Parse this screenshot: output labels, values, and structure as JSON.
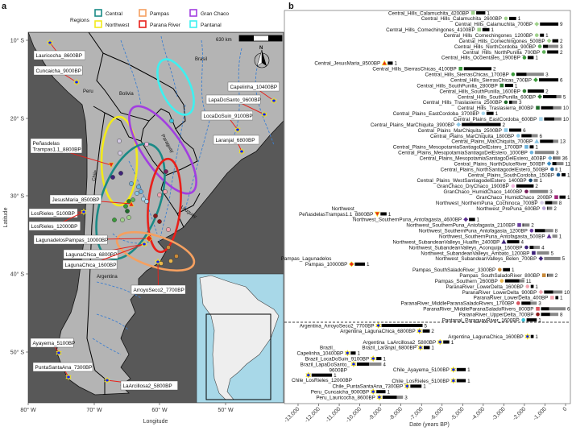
{
  "panels": {
    "a": "a",
    "b": "b"
  },
  "map": {
    "legend_title": "Regions",
    "regions": [
      {
        "name": "Central",
        "color": "#1a8a86"
      },
      {
        "name": "Northwest",
        "color": "#f2ea1a"
      },
      {
        "name": "Pampas",
        "color": "#f5a060"
      },
      {
        "name": "Parana River",
        "color": "#e8201a"
      },
      {
        "name": "Gran Chaco",
        "color": "#a23ee0"
      },
      {
        "name": "Pantanal",
        "color": "#3ef0f0"
      }
    ],
    "scale_label": "630 km",
    "north_label": "N",
    "countries": [
      "Peru",
      "Bolivia",
      "Brasil",
      "Paraguay",
      "Uruguay",
      "Chile",
      "Argentina"
    ],
    "lat_ticks": [
      "10° S",
      "20° S",
      "30° S",
      "40° S",
      "50° S"
    ],
    "lon_ticks": [
      "80° W",
      "70° W",
      "60° W",
      "50° W"
    ],
    "xlabel": "Longitude",
    "ylabel": "Latitude",
    "site_labels": [
      "Lauricocha_8600BP",
      "Cuncaicha_9000BP",
      "Capelinha_10400BP",
      "LapaDoSanto_9600BP",
      "LocaDoSuin_9100BP",
      "Laranjal_6800BP",
      "Peñasdelas",
      "Trampas1.1_8800BP",
      "JesusMaria_8500BP",
      "LosRieles_5100BP",
      "LosRieles_12000BP",
      "LagunadelosPampas_10000BP",
      "LagunaChica_6800BP",
      "LagunaChica_1600BP",
      "ArroyoSeco2_7700BP",
      "Ayayema_5100BP",
      "PuntaSantaAna_7300BP",
      "LaArcillosa2_5800BP"
    ],
    "ancient_marker_color": "#1020ff",
    "ancient_marker_outline": "#f2e21a",
    "inset_ocean_color": "#a8d8e8"
  },
  "chart_data": {
    "type": "scatter",
    "xlabel": "Date (years BP)",
    "xlim": [
      -13000,
      0
    ],
    "xticks": [
      "-13,000",
      "-12,000",
      "-11,000",
      "-10,000",
      "-9,000",
      "-8,000",
      "-7,000",
      "-6,000",
      "-5,000",
      "-4,000",
      "-3,000",
      "-2,000",
      "-1,000",
      "0"
    ],
    "grid": false,
    "separator": "dashed",
    "rows": [
      {
        "label": "Central_Hills_Calamuchita_4200BP",
        "date": -4500,
        "bar_end": -3900,
        "black_end": -3900,
        "count": "1",
        "color": "#9fd18b",
        "shape": "square"
      },
      {
        "label": "Central_Hills_Calamuchita_2600BP",
        "date": -2900,
        "bar_end": -2400,
        "black_end": -2400,
        "count": "1",
        "color": "#9fd18b",
        "shape": "circle"
      },
      {
        "label": "Central_Hills_Calamuchita_700BP",
        "date": -1400,
        "bar_end": -350,
        "black_end": -350,
        "count": "9",
        "color": "#9fd18b",
        "shape": "diamond"
      },
      {
        "label": "Central_Hills_Comechingones_4100BP",
        "date": -4200,
        "bar_end": -3700,
        "black_end": -3700,
        "count": "1",
        "color": "#9fd18b",
        "shape": "square"
      },
      {
        "label": "Central_Hills_Comechingones_1200BP",
        "date": -1400,
        "bar_end": -1050,
        "black_end": -1050,
        "count": "1",
        "color": "#9fd18b",
        "shape": "circle"
      },
      {
        "label": "Central_Hills_Comechingones_500BP",
        "date": -800,
        "bar_end": -350,
        "black_end": -350,
        "count": "2",
        "color": "#9fd18b",
        "shape": "diamond"
      },
      {
        "label": "Central_Hills_NorthCordoba_900BP",
        "date": -1250,
        "bar_end": -350,
        "black_end": -850,
        "count": "3",
        "color": "#5fb35a",
        "shape": "circle"
      },
      {
        "label": "Central_Hills_NorthPunilla_700BP",
        "date": -1050,
        "bar_end": -350,
        "black_end": -350,
        "count": "2",
        "color": "#5fb35a",
        "shape": "circle"
      },
      {
        "label": "Central_Hills_Occientales_1900BP",
        "date": -2000,
        "bar_end": -1550,
        "black_end": -1550,
        "count": "1",
        "color": "#3a9a3a",
        "shape": "circle"
      },
      {
        "label": "Central_JesusMaria_8500BP",
        "date": -8800,
        "bar_end": -8400,
        "black_end": -8400,
        "count": "1",
        "color": "#e8261a",
        "shape": "triangle"
      },
      {
        "label": "Central_Hills_SierrasChicas_4100BP",
        "date": -5100,
        "bar_end": -3600,
        "black_end": -3600,
        "count": "2",
        "color": "#3a9a3a",
        "shape": "square"
      },
      {
        "label": "Central_Hills_SierrasChicas_1700BP",
        "date": -2550,
        "bar_end": -1050,
        "black_end": -1900,
        "count": "3",
        "color": "#3a9a3a",
        "shape": "circle"
      },
      {
        "label": "Central_Hills_SierrasChicas_700BP",
        "date": -1450,
        "bar_end": -350,
        "black_end": -350,
        "count": "6",
        "color": "#3a9a3a",
        "shape": "diamond"
      },
      {
        "label": "Central_Hills_SouthPunilla_2800BP",
        "date": -3100,
        "bar_end": -2550,
        "black_end": -2550,
        "count": "1",
        "color": "#2e7d32",
        "shape": "square"
      },
      {
        "label": "Central_Hills_SouthPunilla_1600BP",
        "date": -2000,
        "bar_end": -1050,
        "black_end": -1050,
        "count": "2",
        "color": "#2e7d32",
        "shape": "circle"
      },
      {
        "label": "Central_Hills_SouthPunilla_600BP",
        "date": -1250,
        "bar_end": -200,
        "black_end": -450,
        "count": "5",
        "color": "#2e7d32",
        "shape": "diamond"
      },
      {
        "label": "Central_Hills_Traslasierra_2500BP",
        "date": -2900,
        "bar_end": -2350,
        "black_end": -2600,
        "count": "3",
        "color": "#1e6b2a",
        "shape": "circle"
      },
      {
        "label": "Central_Hills_Traslasierra_800BP",
        "date": -1350,
        "bar_end": -200,
        "black_end": -600,
        "count": "10",
        "color": "#1e6b2a",
        "shape": "square"
      },
      {
        "label": "Central_Plains_EastCordoba_3700BP",
        "date": -4000,
        "bar_end": -3500,
        "black_end": -3500,
        "count": "1",
        "color": "#a9d6ec",
        "shape": "circle"
      },
      {
        "label": "Central_Plains_EastCordoba_600BP",
        "date": -1200,
        "bar_end": -200,
        "black_end": -550,
        "count": "10",
        "color": "#a9d6ec",
        "shape": "square"
      },
      {
        "label": "Central_Plains_MarChiquita_3900BP",
        "date": -5200,
        "bar_end": -3150,
        "black_end": -3150,
        "count": "2",
        "color": "#8cc7e6",
        "shape": "diamond"
      },
      {
        "label": "Central_Plains_MarChiquita_2500BP",
        "date": -2900,
        "bar_end": -2150,
        "black_end": -2150,
        "count": "6",
        "color": "#8cc7e6",
        "shape": "square"
      },
      {
        "label": "Central_Plains_MarChiquita_1800BP",
        "date": -2300,
        "bar_end": -1350,
        "black_end": -1650,
        "count": "6",
        "color": "#8cc7e6",
        "shape": "circle"
      },
      {
        "label": "Central_Plains_MarChiquita_700BP",
        "date": -1400,
        "bar_end": -350,
        "black_end": -600,
        "count": "13",
        "color": "#8cc7e6",
        "shape": "triangle"
      },
      {
        "label": "Central_Plains_MesopotamiaSantiagoDelEstero_1700BP",
        "date": -1900,
        "bar_end": -1550,
        "black_end": -1550,
        "count": "1",
        "color": "#6fb3dc",
        "shape": "square"
      },
      {
        "label": "Central_Plains_MesopotamiaSantiagoDelEstero_1000BP",
        "date": -1650,
        "bar_end": -550,
        "black_end": -1650,
        "count": "3",
        "color": "#6fb3dc",
        "shape": "circle"
      },
      {
        "label": "Central_Plains_MesopotamiaSantiagoDelEstero_400BP",
        "date": -750,
        "bar_end": -250,
        "black_end": -550,
        "count": "36",
        "color": "#6fb3dc",
        "shape": "diamond"
      },
      {
        "label": "Central_Plains_NorthDulceRiver_500BP",
        "date": -800,
        "bar_end": -100,
        "black_end": -450,
        "count": "11",
        "color": "#3f8fc4",
        "shape": "diamond"
      },
      {
        "label": "Central_Plains_NorthSantiagodelEstero_500BP",
        "date": -650,
        "bar_end": -400,
        "black_end": -650,
        "count": "1",
        "color": "#2b6fa3",
        "shape": "circle"
      },
      {
        "label": "Central_Plains_SouthCordoba_150BP",
        "date": -350,
        "bar_end": 0,
        "black_end": 0,
        "count": "1",
        "color": "#1f5c8f",
        "shape": "circle"
      },
      {
        "label": "Central_Plains_WestSantiagodelEstero_1400BP",
        "date": -1700,
        "bar_end": -1350,
        "black_end": -1700,
        "count": "1",
        "color": "#174a73",
        "shape": "circle"
      },
      {
        "label": "GranChaco_DryChaco_1900BP",
        "date": -2550,
        "bar_end": -1550,
        "black_end": -1550,
        "count": "2",
        "color": "#f2b8df",
        "shape": "circle"
      },
      {
        "label": "GranChaco_HumidChaco_1400BP",
        "date": -1900,
        "bar_end": -850,
        "black_end": -1900,
        "count": "3",
        "color": "#7a1f5c",
        "shape": "circle"
      },
      {
        "label": "GranChaco_HumidChaco_200BP",
        "date": -450,
        "bar_end": 0,
        "black_end": 0,
        "count": "1",
        "color": "#a0287a",
        "shape": "square"
      },
      {
        "label": "Northwest_NorthernPuna_Cochinoca_700BP",
        "date": -1150,
        "bar_end": -400,
        "black_end": -650,
        "count": "8",
        "color": "#d5cbe6",
        "shape": "circle"
      },
      {
        "label": "Northwest_PrePuna_600BP",
        "date": -1050,
        "bar_end": -650,
        "black_end": -850,
        "count": "2",
        "color": "#b9a4d8",
        "shape": "circle"
      },
      {
        "label_lines": [
          "Northwest_",
          "PeñasdelasTrampas1.1_8800BP"
        ],
        "date": -9150,
        "bar_end": -8700,
        "black_end": -8700,
        "count": "1",
        "color": "#e8261a",
        "shape": "triangle-down"
      },
      {
        "label": "Northwest_SouthernPuna_Antofagasta_4600BP",
        "date": -4850,
        "bar_end": -4400,
        "black_end": -4400,
        "count": "1",
        "color": "#5a2d91",
        "shape": "diamond"
      },
      {
        "label": "Northwest_SouthernPuna_Antofagasta_2100BP",
        "date": -2250,
        "bar_end": -1750,
        "black_end": -2050,
        "count": "2",
        "color": "#6a3fa0",
        "shape": "square"
      },
      {
        "label": "Northwest_SouthernPuna_Antofagasta_1200BP",
        "date": -1650,
        "bar_end": -600,
        "black_end": -1000,
        "count": "8",
        "color": "#6a3fa0",
        "shape": "circle"
      },
      {
        "label": "Northwest_SouthernPuna_Antofagasta_500BP",
        "date": -800,
        "bar_end": -400,
        "black_end": -800,
        "count": "1",
        "color": "#5a2d91",
        "shape": "triangle"
      },
      {
        "label": "Northwest_SubandeanValleys_Hualfin_2400BP",
        "date": -3000,
        "bar_end": -2250,
        "black_end": -2250,
        "count": "4",
        "color": "#3f237a",
        "shape": "triangle"
      },
      {
        "label": "Northwest_SubandeanValleys_Aconquija_1600BP",
        "date": -1900,
        "bar_end": -1250,
        "black_end": -1550,
        "count": "4",
        "color": "#3f237a",
        "shape": "circle"
      },
      {
        "label": "Northwest_SubandeanValleys_Ambato_1200BP",
        "date": -1550,
        "bar_end": -800,
        "black_end": -1550,
        "count": "5",
        "color": "#3f237a",
        "shape": "square"
      },
      {
        "label": "Northwest_SubandeanValleys_Belen_700BP",
        "date": -1200,
        "bar_end": -250,
        "black_end": -1200,
        "count": "5",
        "color": "#3f237a",
        "shape": "diamond"
      },
      {
        "label_lines": [
          "Pampas_Lagunadelos",
          "Pampas_10000BP"
        ],
        "date": -10400,
        "bar_end": -9750,
        "black_end": -9750,
        "count": "1",
        "color": "#e8261a",
        "shape": "diamond"
      },
      {
        "label": "Pampas_SouthSaladoRiver_3300BP",
        "date": -3200,
        "bar_end": -2700,
        "black_end": -2700,
        "count": "1",
        "color": "#c98a3a",
        "shape": "circle"
      },
      {
        "label": "Pampas_SouthSaladoRiver_800BP",
        "date": -1050,
        "bar_end": -600,
        "black_end": -850,
        "count": "2",
        "color": "#c98a3a",
        "shape": "square"
      },
      {
        "label": "Pampas_Southern_2600BP",
        "date": -3100,
        "bar_end": -2000,
        "black_end": -2250,
        "count": "11",
        "color": "#e8b54d",
        "shape": "circle"
      },
      {
        "label": "ParanaRiver_LowerDelta_1600BP",
        "date": -1850,
        "bar_end": -1550,
        "black_end": -1550,
        "count": "1",
        "color": "#f2a5b0",
        "shape": "circle"
      },
      {
        "label": "ParanaRiver_LowerDelta_900BP",
        "date": -1200,
        "bar_end": -150,
        "black_end": -600,
        "count": "10",
        "color": "#f2a5b0",
        "shape": "diamond"
      },
      {
        "label": "ParanaRiver_LowerDelta_400BP",
        "date": -650,
        "bar_end": -350,
        "black_end": -350,
        "count": "1",
        "color": "#f2a5b0",
        "shape": "square"
      },
      {
        "label": "ParanaRiver_MiddleParanaSaladoRivers_1700BP",
        "date": -2300,
        "bar_end": -1400,
        "black_end": -1700,
        "count": "3",
        "color": "#d9545f",
        "shape": "circle"
      },
      {
        "label": "ParanaRiver_MiddleParanaSaladoRivers_800BP",
        "date": -1350,
        "bar_end": 0,
        "black_end": -800,
        "count": "6",
        "color": "#d9545f",
        "shape": "square"
      },
      {
        "label": "ParanaRiver_UpperDelta_700BP",
        "date": -1350,
        "bar_end": -350,
        "black_end": -750,
        "count": "8",
        "color": "#8b1a1a",
        "shape": "circle"
      },
      {
        "label": "Pantanal_ParaguayRiver_1600BP",
        "date": -2050,
        "bar_end": -1400,
        "black_end": -1400,
        "count": "1",
        "color": "#3ec3d9",
        "shape": "circle"
      }
    ],
    "ancient_rows": [
      {
        "label": "Argentina_ArroyoSeco2_7700BP",
        "date": -9100,
        "bar_end": -6950,
        "black_end": -6950,
        "count": "5"
      },
      {
        "label": "Argentina_LagunaChica_6800BP",
        "date": -7100,
        "bar_end": -6600,
        "black_end": -6600,
        "count": "2"
      },
      {
        "label": "Argentina_LagunaChica_1600BP",
        "date": -1850,
        "bar_end": -1550,
        "black_end": -1550,
        "count": "1"
      },
      {
        "label": "Argentina_LaArcillosa2_5800BP",
        "date": -6100,
        "bar_end": -5650,
        "black_end": -5650,
        "count": "1"
      },
      {
        "label": "Brazil_Laranjal_6800BP",
        "date": -7050,
        "bar_end": -6600,
        "black_end": -6600,
        "count": "1"
      },
      {
        "label_lines": [
          "Brazil_",
          "Capelinha_10400BP"
        ],
        "date": -10600,
        "bar_end": -10200,
        "black_end": -10200,
        "count": "1"
      },
      {
        "label": "Brazil_LocaDoSuin_9100BP",
        "date": -9350,
        "bar_end": -8950,
        "black_end": -8950,
        "count": "1"
      },
      {
        "label_lines": [
          "Brazil_LapaDoSanto_",
          "9600BP"
        ],
        "date": -10300,
        "bar_end": -8950,
        "black_end": -9550,
        "count": "4"
      },
      {
        "label": "Chile_Ayayema_5100BP",
        "date": -5450,
        "bar_end": -4850,
        "black_end": -4850,
        "count": "1"
      },
      {
        "label": "Chile_LosRieles_12000BP",
        "date": -12500,
        "bar_end": -11350,
        "black_end": -11350,
        "count": "1"
      },
      {
        "label": "Chile_LosRieles_5100BP",
        "date": -5450,
        "bar_end": -4850,
        "black_end": -4850,
        "count": "1"
      },
      {
        "label": "Chile_PuntaSantaAna_7300BP",
        "date": -7700,
        "bar_end": -7000,
        "black_end": -7000,
        "count": "1"
      },
      {
        "label": "Peru_Cuncaicha_9000BP",
        "date": -9350,
        "bar_end": -8750,
        "black_end": -8750,
        "count": "1"
      },
      {
        "label": "Peru_Lauricocha_8600BP",
        "date": -9050,
        "bar_end": -7900,
        "black_end": -8200,
        "count": "3"
      }
    ],
    "bar_colors": {
      "primary": "#000000",
      "secondary": "#888888"
    }
  }
}
